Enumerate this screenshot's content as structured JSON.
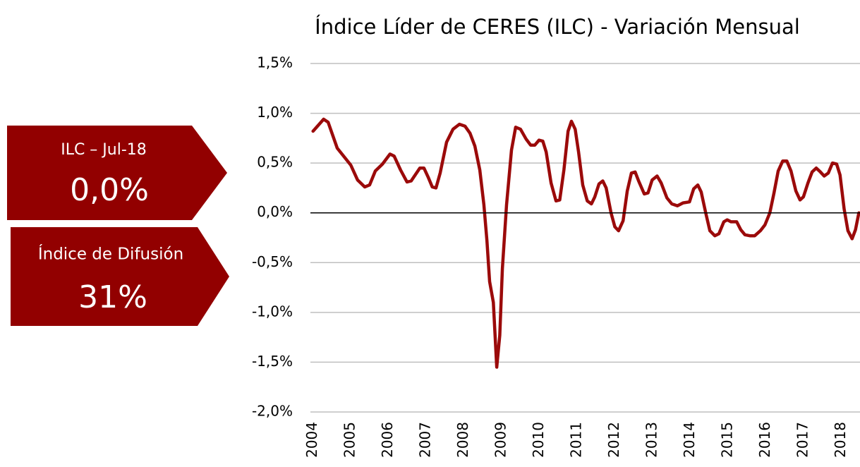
{
  "chart_data": {
    "type": "line",
    "title": "Índice Líder de CERES (ILC) - Variación Mensual",
    "annotations": [
      {
        "label": "ILC – Jul-18",
        "value": "0,0%"
      },
      {
        "label": "Índice de Difusión",
        "value": "31%"
      }
    ],
    "x": [
      2004.0,
      2004.28,
      2004.4,
      2004.64,
      2005.0,
      2005.18,
      2005.37,
      2005.5,
      2005.65,
      2005.84,
      2006.04,
      2006.15,
      2006.32,
      2006.49,
      2006.6,
      2006.83,
      2006.94,
      2007.05,
      2007.16,
      2007.26,
      2007.37,
      2007.54,
      2007.71,
      2007.88,
      2008.03,
      2008.16,
      2008.29,
      2008.42,
      2008.53,
      2008.61,
      2008.68,
      2008.78,
      2008.87,
      2008.95,
      2009.02,
      2009.13,
      2009.26,
      2009.37,
      2009.5,
      2009.65,
      2009.77,
      2009.88,
      2009.99,
      2010.09,
      2010.18,
      2010.31,
      2010.44,
      2010.54,
      2010.65,
      2010.76,
      2010.85,
      2010.95,
      2011.04,
      2011.15,
      2011.27,
      2011.38,
      2011.47,
      2011.58,
      2011.68,
      2011.77,
      2011.9,
      2012.0,
      2012.1,
      2012.22,
      2012.33,
      2012.44,
      2012.54,
      2012.63,
      2012.78,
      2012.88,
      2012.99,
      2013.12,
      2013.23,
      2013.38,
      2013.51,
      2013.66,
      2013.81,
      2013.98,
      2014.09,
      2014.2,
      2014.29,
      2014.41,
      2014.52,
      2014.65,
      2014.76,
      2014.89,
      2014.98,
      2015.08,
      2015.23,
      2015.34,
      2015.45,
      2015.58,
      2015.71,
      2015.86,
      2015.98,
      2016.11,
      2016.22,
      2016.33,
      2016.45,
      2016.56,
      2016.67,
      2016.8,
      2016.91,
      2017.0,
      2017.12,
      2017.23,
      2017.34,
      2017.45,
      2017.55,
      2017.66,
      2017.77,
      2017.88,
      2017.97,
      2018.08,
      2018.18,
      2018.29,
      2018.38,
      2018.47
    ],
    "series": [
      {
        "name": "ILC",
        "color": "#9b0a0a",
        "values": [
          0.82,
          0.94,
          0.91,
          0.65,
          0.48,
          0.33,
          0.26,
          0.28,
          0.42,
          0.49,
          0.59,
          0.57,
          0.43,
          0.31,
          0.32,
          0.45,
          0.45,
          0.36,
          0.26,
          0.25,
          0.4,
          0.71,
          0.84,
          0.89,
          0.87,
          0.8,
          0.67,
          0.43,
          0.08,
          -0.28,
          -0.69,
          -0.9,
          -1.55,
          -1.23,
          -0.56,
          0.08,
          0.63,
          0.86,
          0.84,
          0.74,
          0.68,
          0.68,
          0.73,
          0.72,
          0.61,
          0.3,
          0.12,
          0.13,
          0.43,
          0.82,
          0.92,
          0.84,
          0.61,
          0.28,
          0.12,
          0.09,
          0.16,
          0.29,
          0.32,
          0.25,
          0.0,
          -0.14,
          -0.18,
          -0.08,
          0.22,
          0.4,
          0.41,
          0.32,
          0.19,
          0.2,
          0.33,
          0.37,
          0.3,
          0.15,
          0.09,
          0.07,
          0.1,
          0.11,
          0.24,
          0.28,
          0.21,
          0.0,
          -0.18,
          -0.23,
          -0.21,
          -0.09,
          -0.07,
          -0.09,
          -0.09,
          -0.17,
          -0.22,
          -0.23,
          -0.23,
          -0.18,
          -0.12,
          0.0,
          0.2,
          0.42,
          0.52,
          0.52,
          0.42,
          0.22,
          0.13,
          0.16,
          0.3,
          0.41,
          0.45,
          0.41,
          0.37,
          0.4,
          0.5,
          0.49,
          0.38,
          0.04,
          -0.18,
          -0.26,
          -0.17,
          0.0
        ]
      }
    ],
    "xlim": [
      2003.93,
      2018.5
    ],
    "xticks": [
      2004,
      2005,
      2006,
      2007,
      2008,
      2009,
      2010,
      2011,
      2012,
      2013,
      2014,
      2015,
      2016,
      2017,
      2018
    ],
    "ylim": [
      -2.0,
      1.5
    ],
    "yticks": [
      {
        "value": -2.0,
        "label": "-2,0%"
      },
      {
        "value": -1.5,
        "label": "-1,5%"
      },
      {
        "value": -1.0,
        "label": "-1,0%"
      },
      {
        "value": -0.5,
        "label": "-0,5%"
      },
      {
        "value": 0.0,
        "label": "0,0%"
      },
      {
        "value": 0.5,
        "label": "0,5%"
      },
      {
        "value": 1.0,
        "label": "1,0%"
      },
      {
        "value": 1.5,
        "label": "1,5%"
      }
    ],
    "grid": true
  }
}
